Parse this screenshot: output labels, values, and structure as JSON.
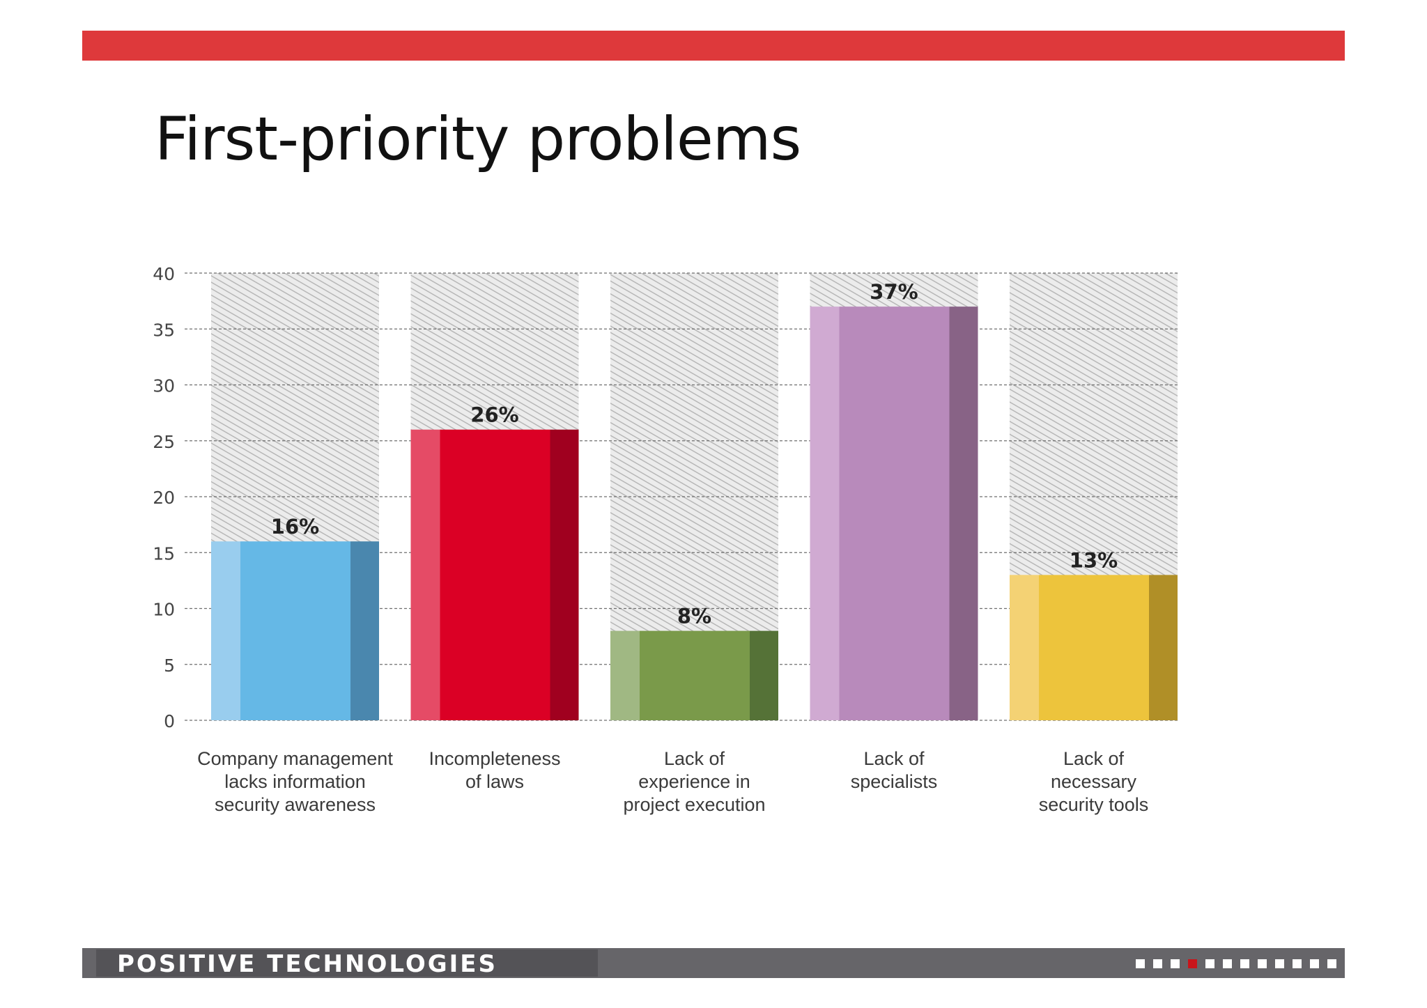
{
  "slide": {
    "title": "First-priority problems",
    "brand": "POSITIVE TECHNOLOGIES",
    "pager": {
      "total": 12,
      "current": 4
    }
  },
  "colors": {
    "top_bar": "#de393b",
    "footer_bar": "#666569",
    "pager_active": "#c8151b"
  },
  "chart_data": {
    "type": "bar",
    "title": "",
    "xlabel": "",
    "ylabel": "",
    "ylim": [
      0,
      40
    ],
    "yticks": [
      0,
      5,
      10,
      15,
      20,
      25,
      30,
      35,
      40
    ],
    "grid": true,
    "categories": [
      [
        "Company management",
        "lacks information",
        "security awareness"
      ],
      [
        "Incompleteness",
        "of laws"
      ],
      [
        "Lack of",
        "experience in",
        "project execution"
      ],
      [
        "Lack of",
        "specialists"
      ],
      [
        "Lack of",
        "necessary",
        "security tools"
      ]
    ],
    "values": [
      16,
      26,
      8,
      37,
      13
    ],
    "labels": [
      "16%",
      "26%",
      "8%",
      "37%",
      "13%"
    ],
    "bar_colors": [
      {
        "light": "#99cdee",
        "main": "#65b8e6",
        "dark": "#4a87ae"
      },
      {
        "light": "#e54b66",
        "main": "#db0025",
        "dark": "#a0001f"
      },
      {
        "light": "#a0b883",
        "main": "#7a9a4a",
        "dark": "#557237"
      },
      {
        "light": "#d0aad2",
        "main": "#b88abb",
        "dark": "#886386"
      },
      {
        "light": "#f4d274",
        "main": "#edc43c",
        "dark": "#b08f27"
      }
    ]
  }
}
